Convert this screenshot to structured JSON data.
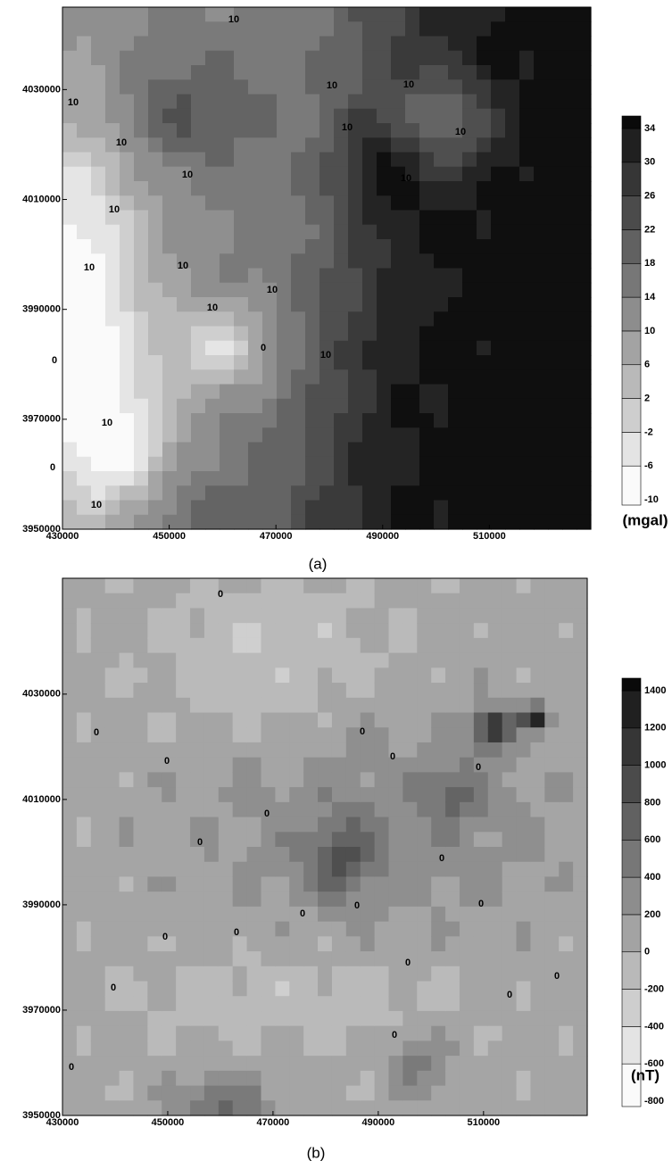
{
  "chart_data": [
    {
      "type": "contour",
      "caption": "(a)",
      "unit": "(mgal)",
      "xlim": [
        430000,
        529000
      ],
      "ylim": [
        3950000,
        4045000
      ],
      "xticks": [
        430000,
        450000,
        470000,
        490000,
        510000
      ],
      "yticks": [
        3950000,
        3970000,
        3990000,
        4010000,
        4030000
      ],
      "colorbar_ticks": [
        -10,
        -6,
        -2,
        2,
        6,
        10,
        14,
        18,
        22,
        26,
        30,
        34
      ],
      "contour_labels": [
        "10",
        "10",
        "10",
        "10",
        "10",
        "10",
        "10",
        "10",
        "10",
        "10",
        "10",
        "10",
        "10",
        "10",
        "10",
        "0",
        "0",
        "0",
        "10",
        "10"
      ]
    },
    {
      "type": "contour",
      "caption": "(b)",
      "unit": "(nT)",
      "xlim": [
        430000,
        529700
      ],
      "ylim": [
        3950000,
        4052000
      ],
      "xticks": [
        430000,
        450000,
        470000,
        490000,
        510000
      ],
      "yticks": [
        3950000,
        3970000,
        3990000,
        4010000,
        4030000
      ],
      "colorbar_ticks": [
        -800,
        -600,
        -400,
        -200,
        0,
        200,
        400,
        600,
        800,
        1000,
        1200,
        1400
      ],
      "contour_labels": [
        "0",
        "0",
        "0",
        "0",
        "0",
        "0",
        "0",
        "0",
        "0",
        "0",
        "0",
        "0",
        "0",
        "0",
        "0",
        "0",
        "0",
        "0",
        "0",
        "0"
      ]
    }
  ]
}
